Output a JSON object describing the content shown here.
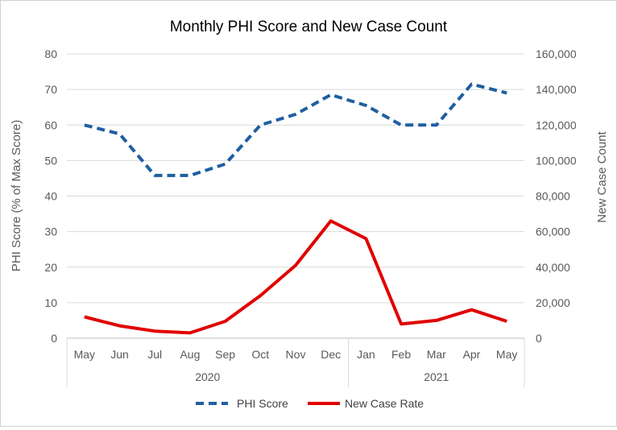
{
  "chart_data": {
    "type": "line",
    "title": "Monthly PHI Score and New Case Count",
    "categories": [
      "May",
      "Jun",
      "Jul",
      "Aug",
      "Sep",
      "Oct",
      "Nov",
      "Dec",
      "Jan",
      "Feb",
      "Mar",
      "Apr",
      "May"
    ],
    "groups": [
      {
        "label": "2020",
        "span": [
          0,
          7
        ]
      },
      {
        "label": "2021",
        "span": [
          8,
          12
        ]
      }
    ],
    "y_left": {
      "label": "PHI Score (% of Max Score)",
      "min": 0,
      "max": 80,
      "ticks": [
        "0",
        "10",
        "20",
        "30",
        "40",
        "50",
        "60",
        "70",
        "80"
      ]
    },
    "y_right": {
      "label": "New Case Count",
      "min": 0,
      "max": 160000,
      "ticks": [
        "0",
        "20,000",
        "40,000",
        "60,000",
        "80,000",
        "100,000",
        "120,000",
        "140,000",
        "160,000"
      ]
    },
    "series": [
      {
        "name": "PHI Score",
        "axis": "left",
        "style": "dashed",
        "color": "#1f5fa0",
        "values": [
          60,
          57.5,
          45.8,
          45.8,
          49,
          60,
          63,
          68.5,
          65.5,
          60,
          60,
          71.5,
          69
        ]
      },
      {
        "name": "New Case Rate",
        "axis": "right",
        "style": "solid",
        "color": "#e00000",
        "values": [
          12000,
          7000,
          4000,
          3000,
          9500,
          24000,
          41000,
          66000,
          56000,
          8000,
          10000,
          16000,
          9500
        ]
      }
    ],
    "grid": true,
    "legend_position": "bottom"
  }
}
